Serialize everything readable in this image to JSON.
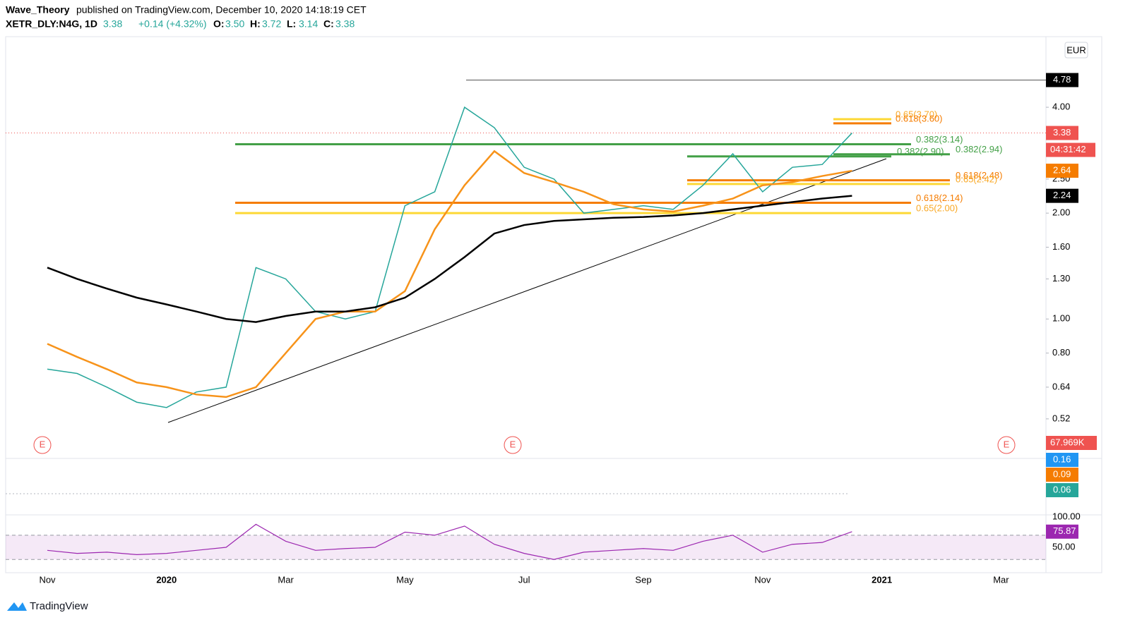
{
  "header": {
    "publisher": "Wave_Theory",
    "published": "published on TradingView.com, December 10, 2020 14:18:19 CET",
    "symbol": "XETR_DLY:N4G, 1D",
    "last": "3.38",
    "change": "+0.14 (+4.32%)",
    "ohlc": [
      {
        "k": "O:",
        "v": "3.50"
      },
      {
        "k": "H:",
        "v": "3.72"
      },
      {
        "k": "L:",
        "v": "3.14"
      },
      {
        "k": "C:",
        "v": "3.38"
      }
    ]
  },
  "chart_data": {
    "type": "line",
    "log_scale": true,
    "currency": "EUR",
    "categories": [
      "Nov",
      null,
      null,
      null,
      "2020",
      null,
      null,
      null,
      "Mar",
      null,
      null,
      null,
      "May",
      null,
      null,
      null,
      "Jul",
      null,
      null,
      null,
      "Sep",
      null,
      null,
      null,
      "Nov",
      null,
      null,
      null,
      "2021",
      null,
      null,
      null,
      "Mar"
    ],
    "series": [
      {
        "color": "#26a69a",
        "values": [
          0.72,
          0.7,
          0.64,
          0.58,
          0.56,
          0.62,
          0.64,
          1.4,
          1.3,
          1.05,
          1.0,
          1.05,
          2.1,
          2.3,
          4.0,
          3.5,
          2.7,
          2.5,
          2.0,
          2.05,
          2.1,
          2.05,
          2.4,
          2.95,
          2.3,
          2.7,
          2.75,
          3.38,
          null,
          null,
          null,
          null,
          null
        ]
      },
      {
        "color": "#f7931a",
        "values": [
          0.85,
          0.78,
          0.72,
          0.66,
          0.64,
          0.61,
          0.6,
          0.64,
          0.8,
          1.0,
          1.05,
          1.05,
          1.2,
          1.8,
          2.4,
          3.0,
          2.6,
          2.45,
          2.3,
          2.12,
          2.05,
          2.02,
          2.1,
          2.2,
          2.4,
          2.45,
          2.55,
          2.64,
          null,
          null,
          null,
          null,
          null
        ]
      },
      {
        "color": "#000000",
        "values": [
          1.4,
          1.3,
          1.22,
          1.15,
          1.1,
          1.05,
          1.0,
          0.98,
          1.02,
          1.05,
          1.05,
          1.08,
          1.15,
          1.3,
          1.5,
          1.75,
          1.85,
          1.9,
          1.92,
          1.94,
          1.95,
          1.97,
          2.0,
          2.05,
          2.1,
          2.15,
          2.2,
          2.24,
          null,
          null,
          null,
          null,
          null
        ]
      }
    ],
    "ylim": [
      0.405,
      6.35
    ],
    "yticks": [
      0.52,
      {
        "value": 0.64,
        "label": "0.64"
      },
      {
        "value": 0.8,
        "label": "0.80"
      },
      {
        "value": 1,
        "label": "1.00"
      },
      {
        "value": 1.3,
        "label": "1.30"
      },
      {
        "value": 1.6,
        "label": "1.60"
      },
      {
        "value": 2,
        "label": "2.00"
      },
      {
        "value": 2.5,
        "label": "2.50"
      },
      {
        "value": 4,
        "label": "4.00"
      }
    ],
    "levels": [
      {
        "label": "0.65(3.70)",
        "value": 3.7,
        "color": "#fdd835"
      },
      {
        "label": "0.618(3.60)",
        "value": 3.6,
        "color": "#f57c00"
      },
      {
        "label": "0.382(3.14)",
        "value": 3.14,
        "color": "#43a047"
      },
      {
        "label": "0.382(2.94)",
        "value": 2.94,
        "color": "#43a047"
      },
      {
        "label": "0.382(2.90)",
        "value": 2.9,
        "color": "#43a047"
      },
      {
        "label": "0.618(2.48)",
        "value": 2.48,
        "color": "#f57c00"
      },
      {
        "label": "0.65(2.42)",
        "value": 2.42,
        "color": "#fdd835"
      },
      {
        "label": "0.618(2.14)",
        "value": 2.14,
        "color": "#f57c00"
      },
      {
        "label": "0.65(2.00)",
        "value": 2.0,
        "color": "#fdd835"
      }
    ],
    "high_line": 4.78,
    "price_labels": [
      {
        "value": 4.78,
        "color": "#000000"
      },
      {
        "value": 3.38,
        "color": "#ef5350"
      },
      {
        "value": 2.64,
        "color": "#f57c00"
      },
      {
        "value": 2.24,
        "color": "#000000"
      }
    ],
    "countdown": "04:31:42",
    "volume_label": "67.969K",
    "earnings": [
      "E",
      "E",
      "E"
    ],
    "macd_labels": [
      {
        "label": "0.16",
        "color": "#2196f3"
      },
      {
        "label": "0.09",
        "color": "#f57c00"
      },
      {
        "label": "0.06",
        "color": "#26a69a"
      }
    ],
    "rsi": {
      "color": "#9c27b0",
      "values": [
        45,
        40,
        42,
        38,
        40,
        45,
        50,
        88,
        60,
        45,
        48,
        50,
        75,
        70,
        85,
        55,
        40,
        30,
        42,
        45,
        48,
        45,
        60,
        70,
        42,
        55,
        58,
        75.87,
        null,
        null,
        null,
        null,
        null
      ],
      "ylim": [
        10.5,
        97.7
      ],
      "yticks": [
        {
          "value": 100,
          "label": "100.00"
        },
        {
          "value": 50,
          "label": "50.00"
        }
      ],
      "bands": [
        30,
        70
      ],
      "last": 75.87
    }
  },
  "footer": "TradingView"
}
